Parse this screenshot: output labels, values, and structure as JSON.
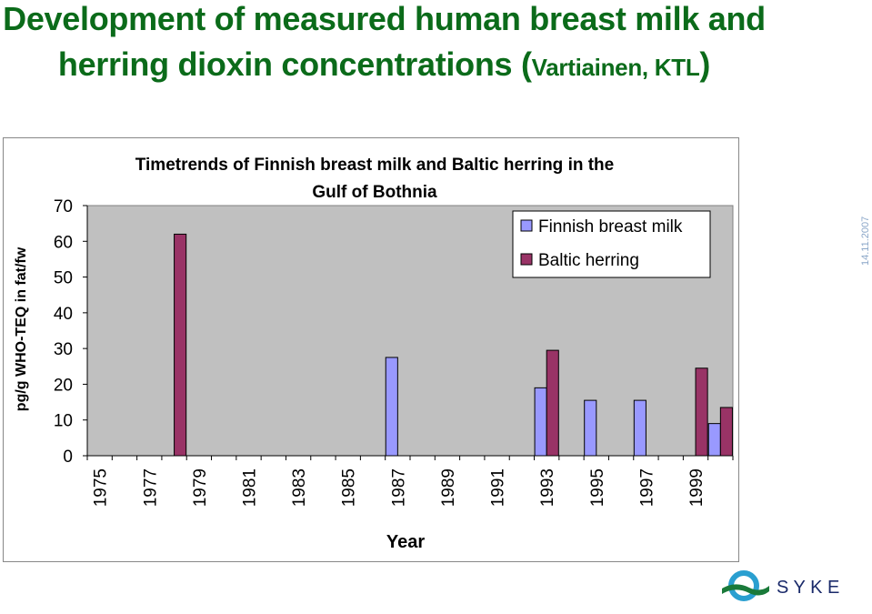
{
  "slide": {
    "title_line1": "Development of measured human breast milk and",
    "title_line2_main": "herring dioxin concentrations (",
    "title_line2_small": "Vartiainen, KTL",
    "title_line2_end": ")",
    "date": "14.11.2007",
    "logo_text": "S Y K E"
  },
  "chart_data": {
    "type": "bar",
    "title": "Timetrends of Finnish breast milk and Baltic herring in the Gulf of Bothnia",
    "title_lines": [
      "Timetrends of Finnish breast milk and Baltic herring in the",
      "Gulf of Bothnia"
    ],
    "xlabel": "Year",
    "ylabel": "pg/g WHO-TEQ in fat/fw",
    "ylim": [
      0,
      70
    ],
    "yticks": [
      0,
      10,
      20,
      30,
      40,
      50,
      60,
      70
    ],
    "x_years": [
      1975,
      1976,
      1977,
      1978,
      1979,
      1980,
      1981,
      1982,
      1983,
      1984,
      1985,
      1986,
      1987,
      1988,
      1989,
      1990,
      1991,
      1992,
      1993,
      1994,
      1995,
      1996,
      1997,
      1998,
      1999,
      2000
    ],
    "tick_labels": [
      "1975",
      "1977",
      "1979",
      "1981",
      "1983",
      "1985",
      "1987",
      "1989",
      "1991",
      "1993",
      "1995",
      "1997",
      "1999"
    ],
    "legend_position": "top-right",
    "series": [
      {
        "name": "Finnish breast milk",
        "color": "#9999ff",
        "points": [
          {
            "year": 1987,
            "value": 27.5
          },
          {
            "year": 1993,
            "value": 19
          },
          {
            "year": 1995,
            "value": 15.5
          },
          {
            "year": 1997,
            "value": 15.5
          },
          {
            "year": 2000,
            "value": 9
          }
        ]
      },
      {
        "name": "Baltic herring",
        "color": "#993366",
        "points": [
          {
            "year": 1978,
            "value": 62
          },
          {
            "year": 1993,
            "value": 29.5
          },
          {
            "year": 1999,
            "value": 24.5
          },
          {
            "year": 2000,
            "value": 13.5
          }
        ]
      }
    ]
  }
}
